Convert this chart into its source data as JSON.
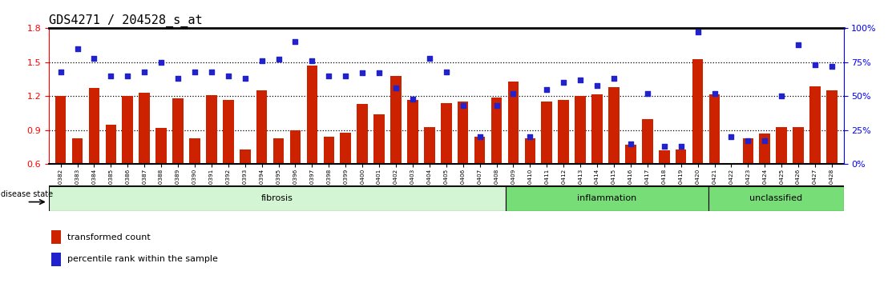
{
  "title": "GDS4271 / 204528_s_at",
  "samples": [
    "GSM380382",
    "GSM380383",
    "GSM380384",
    "GSM380385",
    "GSM380386",
    "GSM380387",
    "GSM380388",
    "GSM380389",
    "GSM380390",
    "GSM380391",
    "GSM380392",
    "GSM380393",
    "GSM380394",
    "GSM380395",
    "GSM380396",
    "GSM380397",
    "GSM380398",
    "GSM380399",
    "GSM380400",
    "GSM380401",
    "GSM380402",
    "GSM380403",
    "GSM380404",
    "GSM380405",
    "GSM380406",
    "GSM380407",
    "GSM380408",
    "GSM380409",
    "GSM380410",
    "GSM380411",
    "GSM380412",
    "GSM380413",
    "GSM380414",
    "GSM380415",
    "GSM380416",
    "GSM380417",
    "GSM380418",
    "GSM380419",
    "GSM380420",
    "GSM380421",
    "GSM380422",
    "GSM380423",
    "GSM380424",
    "GSM380425",
    "GSM380426",
    "GSM380427",
    "GSM380428"
  ],
  "bar_values": [
    1.2,
    0.83,
    1.27,
    0.95,
    1.2,
    1.23,
    0.92,
    1.18,
    0.83,
    1.21,
    1.17,
    0.73,
    1.25,
    0.83,
    0.9,
    1.47,
    0.84,
    0.88,
    1.13,
    1.04,
    1.38,
    1.17,
    0.93,
    1.14,
    1.15,
    0.84,
    1.19,
    1.33,
    0.83,
    1.15,
    1.17,
    1.2,
    1.22,
    1.28,
    0.77,
    1.0,
    0.72,
    0.73,
    1.53,
    1.22,
    0.6,
    0.83,
    0.87,
    0.93,
    0.93,
    1.29,
    1.25
  ],
  "percentile_values": [
    68,
    85,
    78,
    65,
    65,
    68,
    75,
    63,
    68,
    68,
    65,
    63,
    76,
    77,
    90,
    76,
    65,
    65,
    67,
    67,
    56,
    48,
    78,
    68,
    43,
    20,
    43,
    52,
    20,
    55,
    60,
    62,
    58,
    63,
    15,
    52,
    13,
    13,
    97,
    52,
    20,
    17,
    17,
    50,
    88,
    73,
    72
  ],
  "groups": [
    {
      "label": "fibrosis",
      "start": 0,
      "end": 27,
      "color": "#d4f5d4"
    },
    {
      "label": "inflammation",
      "start": 27,
      "end": 39,
      "color": "#77dd77"
    },
    {
      "label": "unclassified",
      "start": 39,
      "end": 47,
      "color": "#77dd77"
    }
  ],
  "ylim_left": [
    0.6,
    1.8
  ],
  "ylim_right": [
    0,
    100
  ],
  "yticks_left": [
    0.6,
    0.9,
    1.2,
    1.5,
    1.8
  ],
  "yticks_right": [
    0,
    25,
    50,
    75,
    100
  ],
  "bar_color": "#cc2200",
  "dot_color": "#2222cc",
  "background_color": "#ffffff",
  "title_fontsize": 11,
  "bar_width": 0.65
}
